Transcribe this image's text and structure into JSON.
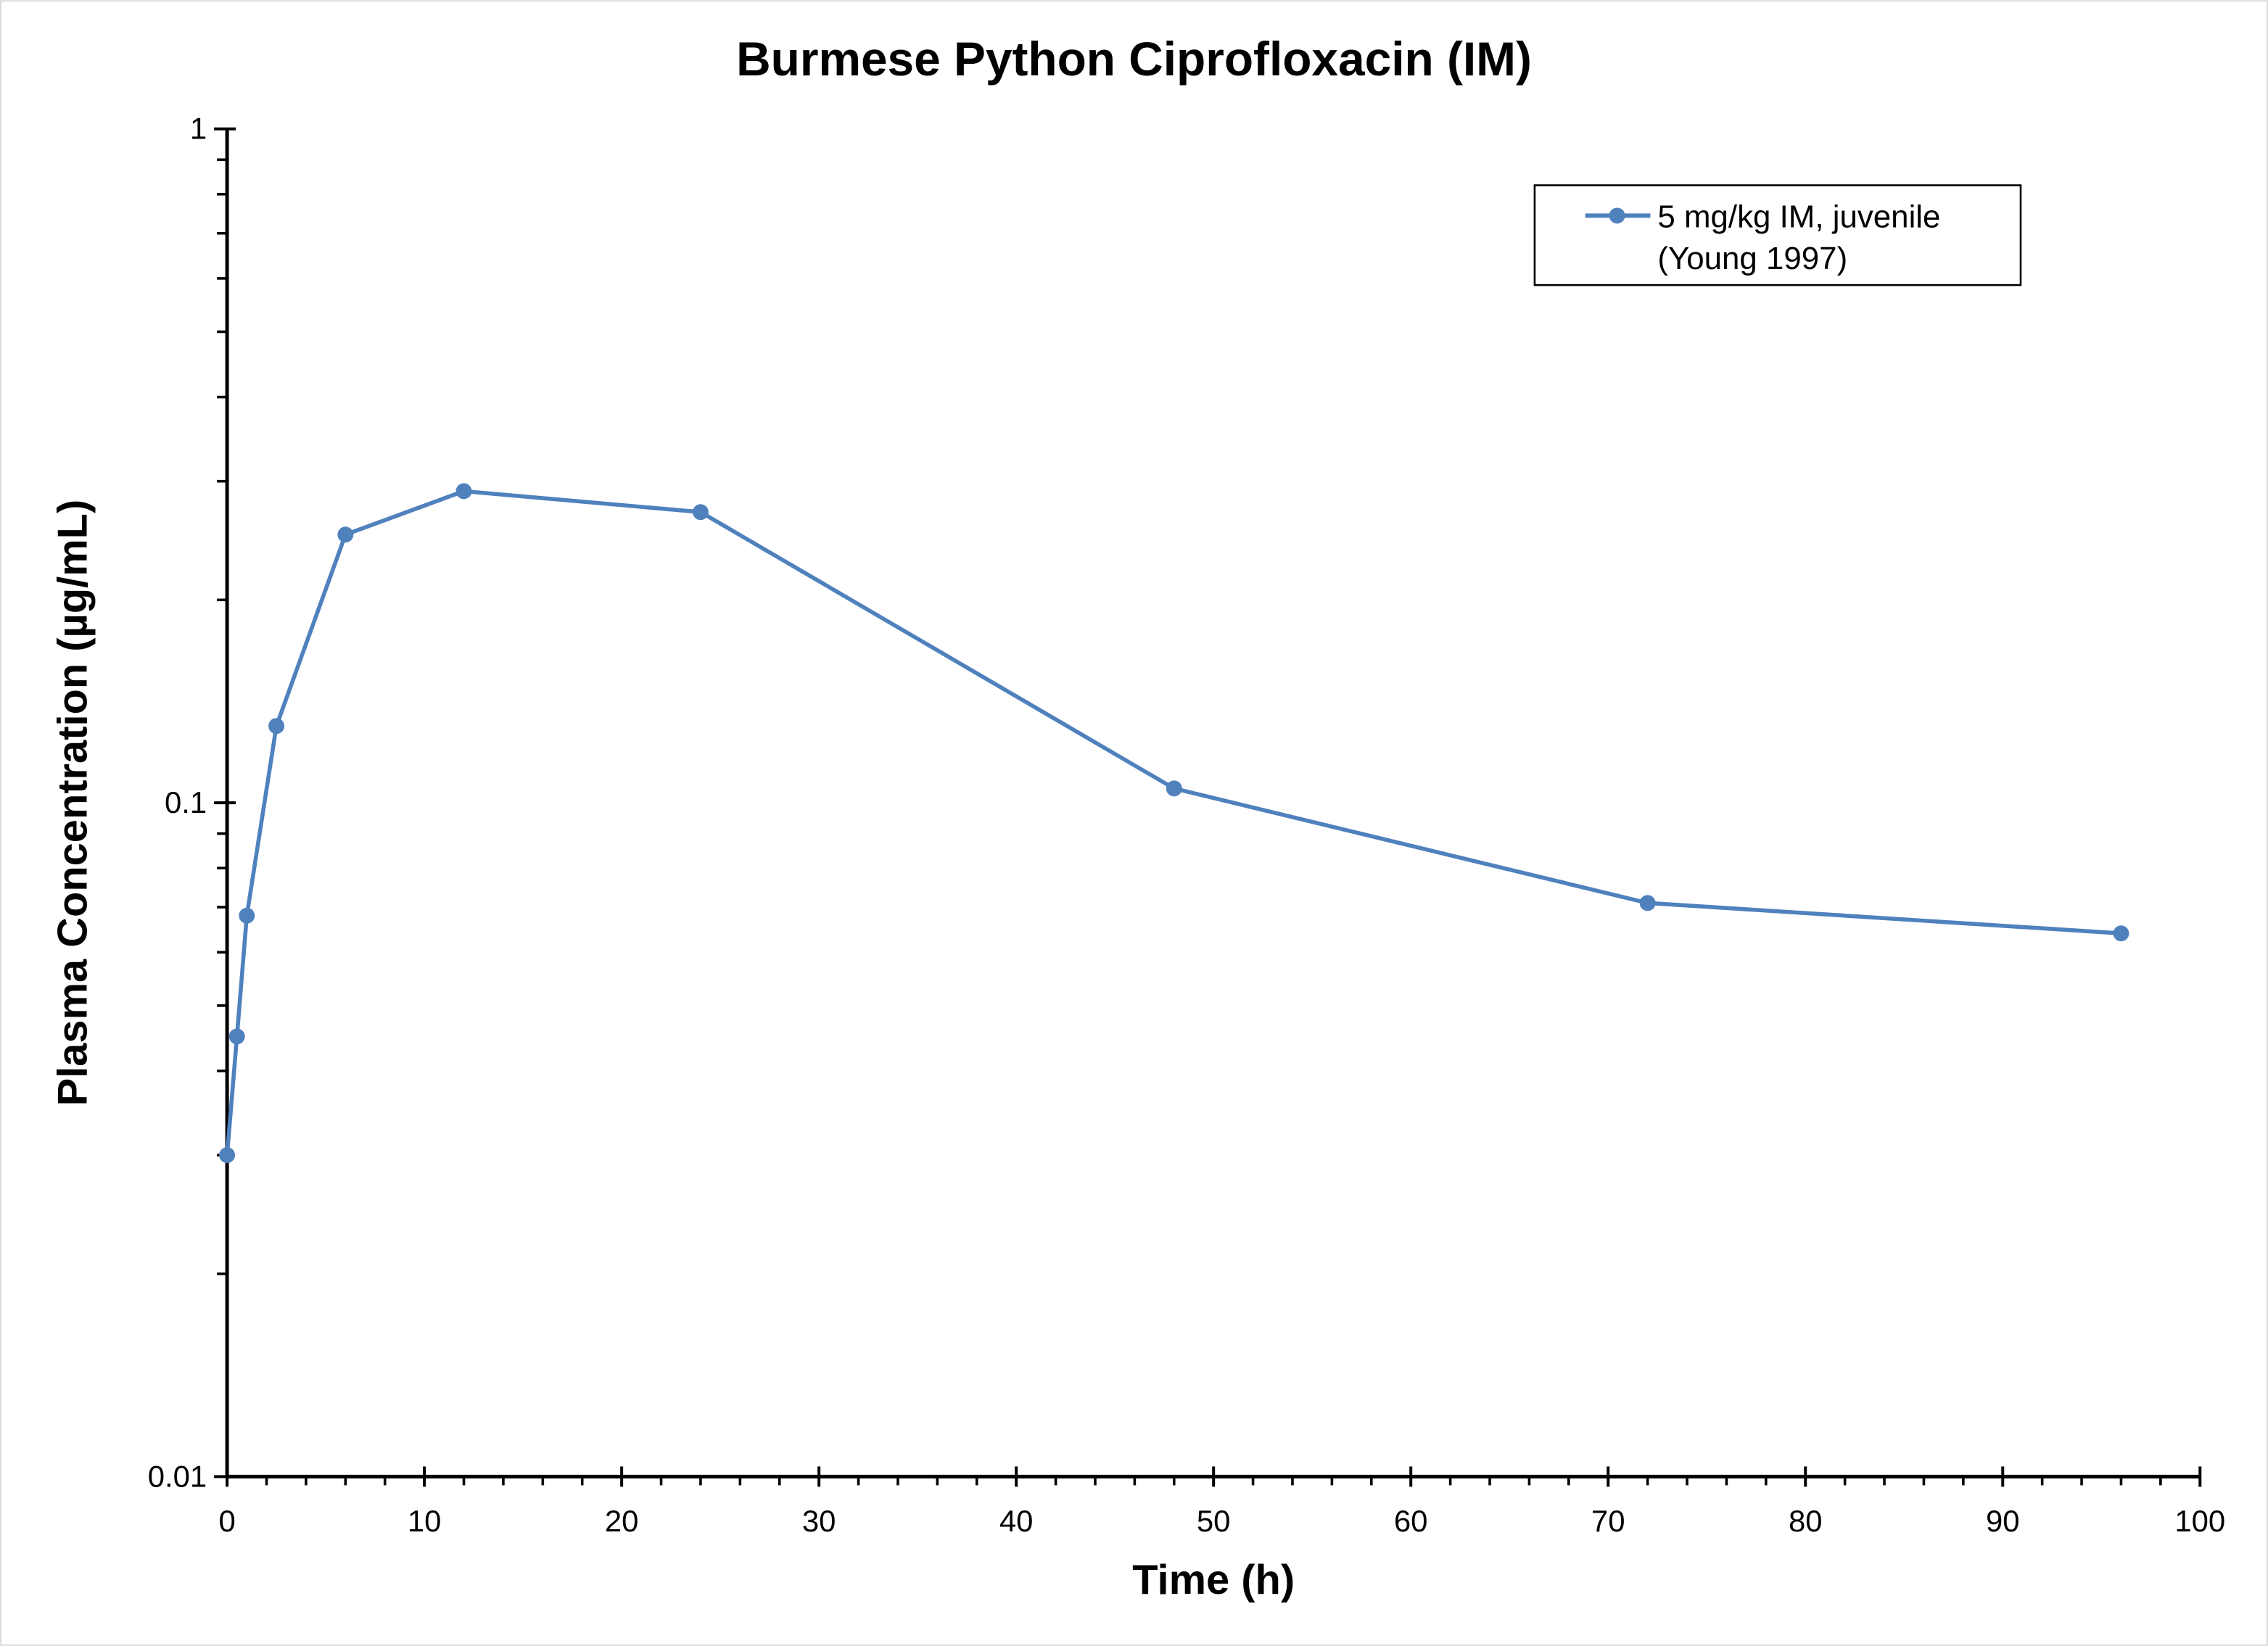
{
  "chart_data": {
    "type": "line",
    "title": "Burmese Python Ciprofloxacin (IM)",
    "xlabel": "Time (h)",
    "ylabel": "Plasma Concentration (µg/mL)",
    "xlim": [
      0,
      100
    ],
    "ylim": [
      0.01,
      1
    ],
    "yscale": "log",
    "grid": false,
    "legend_position": "top-right",
    "x_ticks": [
      "0",
      "10",
      "20",
      "30",
      "40",
      "50",
      "60",
      "70",
      "80",
      "90",
      "100"
    ],
    "y_ticks": [
      "0.01",
      "0.1",
      "1"
    ],
    "series": [
      {
        "name": "5 mg/kg IM, juvenile",
        "name_line2": "(Young 1997)",
        "color": "#4f81bd",
        "x": [
          0,
          0.5,
          1,
          2.5,
          6,
          12,
          24,
          48,
          72,
          96
        ],
        "y": [
          0.03,
          0.045,
          0.068,
          0.13,
          0.25,
          0.29,
          0.27,
          0.105,
          0.071,
          0.064
        ]
      }
    ]
  }
}
